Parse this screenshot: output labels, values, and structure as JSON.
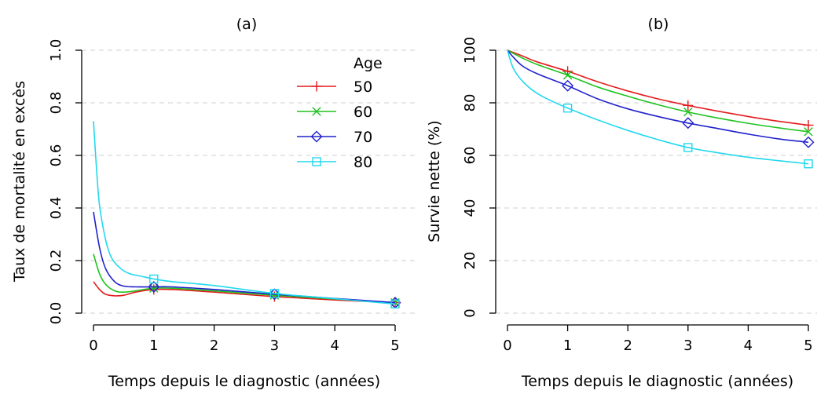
{
  "chart_data": [
    {
      "type": "line",
      "title": "(a)",
      "xlabel": "Temps depuis le diagnostic (années)",
      "ylabel": "Taux de mortalité en excès",
      "xlim": [
        0,
        5
      ],
      "ylim": [
        0,
        1
      ],
      "xticks": [
        0,
        1,
        2,
        3,
        4,
        5
      ],
      "yticks": [
        "0.0",
        "0.2",
        "0.4",
        "0.6",
        "0.8",
        "1.0"
      ],
      "grid": "horizontal dashed",
      "legend": {
        "title": "Age",
        "position": "top-right"
      },
      "marker_x": [
        1,
        3,
        5
      ],
      "series": [
        {
          "name": "50",
          "color": "#e41a1c",
          "marker": "plus",
          "x": [
            0,
            0.1,
            0.2,
            0.35,
            0.5,
            0.7,
            1.0,
            1.3,
            2.0,
            3.0,
            4.0,
            5.0
          ],
          "y": [
            0.12,
            0.09,
            0.072,
            0.066,
            0.068,
            0.08,
            0.09,
            0.09,
            0.08,
            0.063,
            0.05,
            0.04
          ]
        },
        {
          "name": "60",
          "color": "#1ec21e",
          "marker": "x",
          "x": [
            0,
            0.1,
            0.2,
            0.35,
            0.5,
            0.7,
            1.0,
            1.3,
            2.0,
            3.0,
            4.0,
            5.0
          ],
          "y": [
            0.225,
            0.15,
            0.11,
            0.085,
            0.08,
            0.085,
            0.095,
            0.095,
            0.085,
            0.068,
            0.054,
            0.04
          ]
        },
        {
          "name": "70",
          "color": "#2020cc",
          "marker": "diamond",
          "x": [
            0,
            0.1,
            0.2,
            0.35,
            0.5,
            0.7,
            1.0,
            1.3,
            2.0,
            3.0,
            4.0,
            5.0
          ],
          "y": [
            0.385,
            0.25,
            0.17,
            0.12,
            0.103,
            0.1,
            0.1,
            0.1,
            0.09,
            0.072,
            0.056,
            0.04
          ]
        },
        {
          "name": "80",
          "color": "#22d8ee",
          "marker": "square",
          "x": [
            0,
            0.05,
            0.1,
            0.2,
            0.3,
            0.45,
            0.6,
            0.8,
            1.0,
            1.3,
            2.0,
            3.0,
            4.0,
            5.0
          ],
          "y": [
            0.73,
            0.55,
            0.41,
            0.28,
            0.21,
            0.17,
            0.15,
            0.14,
            0.13,
            0.12,
            0.105,
            0.075,
            0.055,
            0.035
          ]
        }
      ]
    },
    {
      "type": "line",
      "title": "(b)",
      "xlabel": "Temps depuis le diagnostic (années)",
      "ylabel": "Survie nette (%)",
      "xlim": [
        0,
        5
      ],
      "ylim": [
        0,
        100
      ],
      "xticks": [
        0,
        1,
        2,
        3,
        4,
        5
      ],
      "yticks": [
        "0",
        "20",
        "40",
        "60",
        "80",
        "100"
      ],
      "grid": "horizontal dashed",
      "legend": "none",
      "marker_x": [
        1,
        3,
        5
      ],
      "series": [
        {
          "name": "50",
          "color": "#e41a1c",
          "marker": "plus",
          "x": [
            0,
            0.25,
            0.5,
            1.0,
            1.5,
            2.0,
            2.5,
            3.0,
            3.5,
            4.0,
            4.5,
            5.0
          ],
          "y": [
            100,
            97.8,
            95.5,
            92,
            88,
            84.5,
            81.5,
            79,
            76.8,
            74.8,
            73,
            71.5
          ]
        },
        {
          "name": "60",
          "color": "#1ec21e",
          "marker": "x",
          "x": [
            0,
            0.25,
            0.5,
            1.0,
            1.5,
            2.0,
            2.5,
            3.0,
            3.5,
            4.0,
            4.5,
            5.0
          ],
          "y": [
            100,
            97,
            94.5,
            90.5,
            86,
            82.5,
            79.3,
            76.5,
            74.2,
            72.2,
            70.5,
            69
          ]
        },
        {
          "name": "70",
          "color": "#2020cc",
          "marker": "diamond",
          "x": [
            0,
            0.1,
            0.25,
            0.5,
            1.0,
            1.5,
            2.0,
            2.5,
            3.0,
            3.5,
            4.0,
            4.5,
            5.0
          ],
          "y": [
            100,
            97.3,
            94,
            91,
            86.5,
            81.5,
            77.7,
            74.8,
            72.3,
            70.2,
            68.1,
            66.3,
            65
          ]
        },
        {
          "name": "80",
          "color": "#22d8ee",
          "marker": "square",
          "x": [
            0,
            0.05,
            0.1,
            0.2,
            0.35,
            0.5,
            0.75,
            1.0,
            1.5,
            2.0,
            2.5,
            3.0,
            3.5,
            4.0,
            4.5,
            5.0
          ],
          "y": [
            100,
            96,
            93,
            89.5,
            86,
            83.5,
            80.5,
            78,
            73.5,
            69.5,
            66,
            63,
            61,
            59.3,
            58,
            56.8
          ]
        }
      ]
    }
  ]
}
